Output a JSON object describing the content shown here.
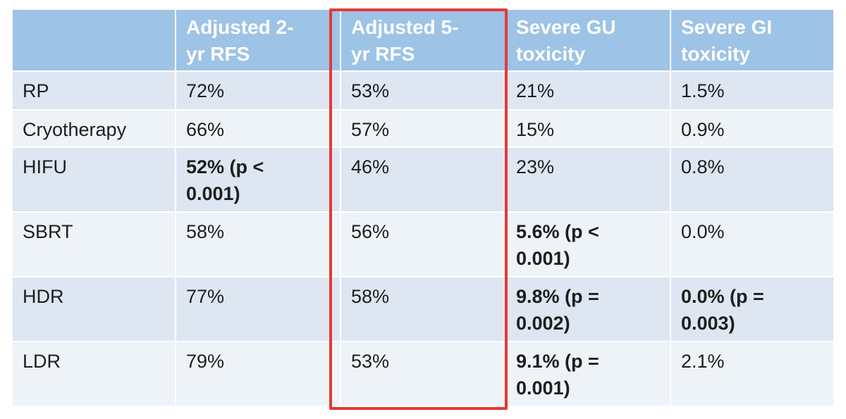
{
  "table": {
    "header": [
      "Adjusted 2-yr RFS",
      "Adjusted 5-yr RFS",
      "Severe GU toxicity",
      "Severe GI toxicity"
    ],
    "rows": [
      {
        "label": "RP",
        "cells": [
          {
            "text": "72%"
          },
          {
            "text": "53%"
          },
          {
            "text": "21%"
          },
          {
            "text": "1.5%"
          }
        ]
      },
      {
        "label": "Cryotherapy",
        "cells": [
          {
            "text": "66%"
          },
          {
            "text": "57%"
          },
          {
            "text": "15%"
          },
          {
            "text": "0.9%"
          }
        ]
      },
      {
        "label": "HIFU",
        "cells": [
          {
            "text": "52% (p < 0.001)",
            "bold": true
          },
          {
            "text": "46%"
          },
          {
            "text": "23%"
          },
          {
            "text": "0.8%"
          }
        ]
      },
      {
        "label": "SBRT",
        "cells": [
          {
            "text": "58%"
          },
          {
            "text": "56%"
          },
          {
            "text": "5.6% (p < 0.001)",
            "bold": true
          },
          {
            "text": "0.0%"
          }
        ]
      },
      {
        "label": "HDR",
        "cells": [
          {
            "text": "77%"
          },
          {
            "text": "58%"
          },
          {
            "text": "9.8% (p = 0.002)",
            "bold": true
          },
          {
            "text": "0.0% (p = 0.003)",
            "bold": true
          }
        ]
      },
      {
        "label": "LDR",
        "cells": [
          {
            "text": "79%"
          },
          {
            "text": "53%"
          },
          {
            "text": "9.1% (p = 0.001)",
            "bold": true
          },
          {
            "text": "2.1%"
          }
        ]
      }
    ]
  }
}
